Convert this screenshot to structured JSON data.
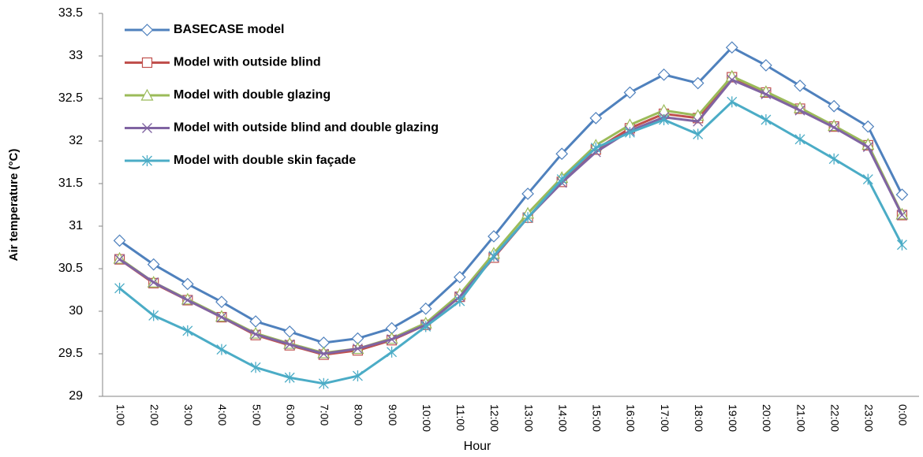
{
  "chart_data": {
    "type": "line",
    "xlabel": "Hour",
    "ylabel": "Air temperature (°C)",
    "categories": [
      "1:00",
      "2:00",
      "3:00",
      "4:00",
      "5:00",
      "6:00",
      "7:00",
      "8:00",
      "9:00",
      "10:00",
      "11:00",
      "12:00",
      "13:00",
      "14:00",
      "15:00",
      "16:00",
      "17:00",
      "18:00",
      "19:00",
      "20:00",
      "21:00",
      "22:00",
      "23:00",
      "0:00"
    ],
    "ylim": [
      29,
      33.5
    ],
    "yticks": [
      29,
      29.5,
      30,
      30.5,
      31,
      31.5,
      32,
      32.5,
      33,
      33.5
    ],
    "grid": false,
    "legend": "upper left",
    "series": [
      {
        "name": "BASECASE model",
        "color": "#4f81bd",
        "marker": "diamond",
        "values": [
          30.83,
          30.55,
          30.32,
          30.11,
          29.88,
          29.76,
          29.63,
          29.68,
          29.8,
          30.03,
          30.4,
          30.88,
          31.38,
          31.85,
          32.27,
          32.57,
          32.78,
          32.68,
          33.1,
          32.89,
          32.65,
          32.41,
          32.17,
          31.37
        ]
      },
      {
        "name": "Model with outside blind",
        "color": "#c0504d",
        "marker": "square",
        "values": [
          30.61,
          30.33,
          30.13,
          29.93,
          29.72,
          29.6,
          29.49,
          29.54,
          29.66,
          29.84,
          30.17,
          30.63,
          31.1,
          31.52,
          31.9,
          32.15,
          32.32,
          32.27,
          32.75,
          32.57,
          32.38,
          32.17,
          31.95,
          31.13
        ]
      },
      {
        "name": "Model with double glazing",
        "color": "#9bbb59",
        "marker": "triangle",
        "values": [
          30.62,
          30.34,
          30.14,
          29.94,
          29.74,
          29.62,
          29.51,
          29.56,
          29.68,
          29.86,
          30.2,
          30.68,
          31.15,
          31.57,
          31.95,
          32.19,
          32.36,
          32.3,
          32.76,
          32.58,
          32.39,
          32.18,
          31.96,
          31.14
        ]
      },
      {
        "name": "Model with outside blind and double glazing",
        "color": "#8064a2",
        "marker": "x",
        "values": [
          30.61,
          30.34,
          30.13,
          29.93,
          29.73,
          29.61,
          29.5,
          29.56,
          29.67,
          29.84,
          30.17,
          30.64,
          31.1,
          31.51,
          31.87,
          32.12,
          32.28,
          32.23,
          32.72,
          32.55,
          32.36,
          32.16,
          31.93,
          31.13
        ]
      },
      {
        "name": "Model with double skin façade",
        "color": "#4bacc6",
        "marker": "asterisk",
        "values": [
          30.27,
          29.95,
          29.77,
          29.55,
          29.34,
          29.22,
          29.15,
          29.24,
          29.52,
          29.82,
          30.12,
          30.65,
          31.1,
          31.55,
          31.92,
          32.1,
          32.25,
          32.08,
          32.46,
          32.25,
          32.02,
          31.79,
          31.55,
          30.78
        ]
      }
    ]
  }
}
